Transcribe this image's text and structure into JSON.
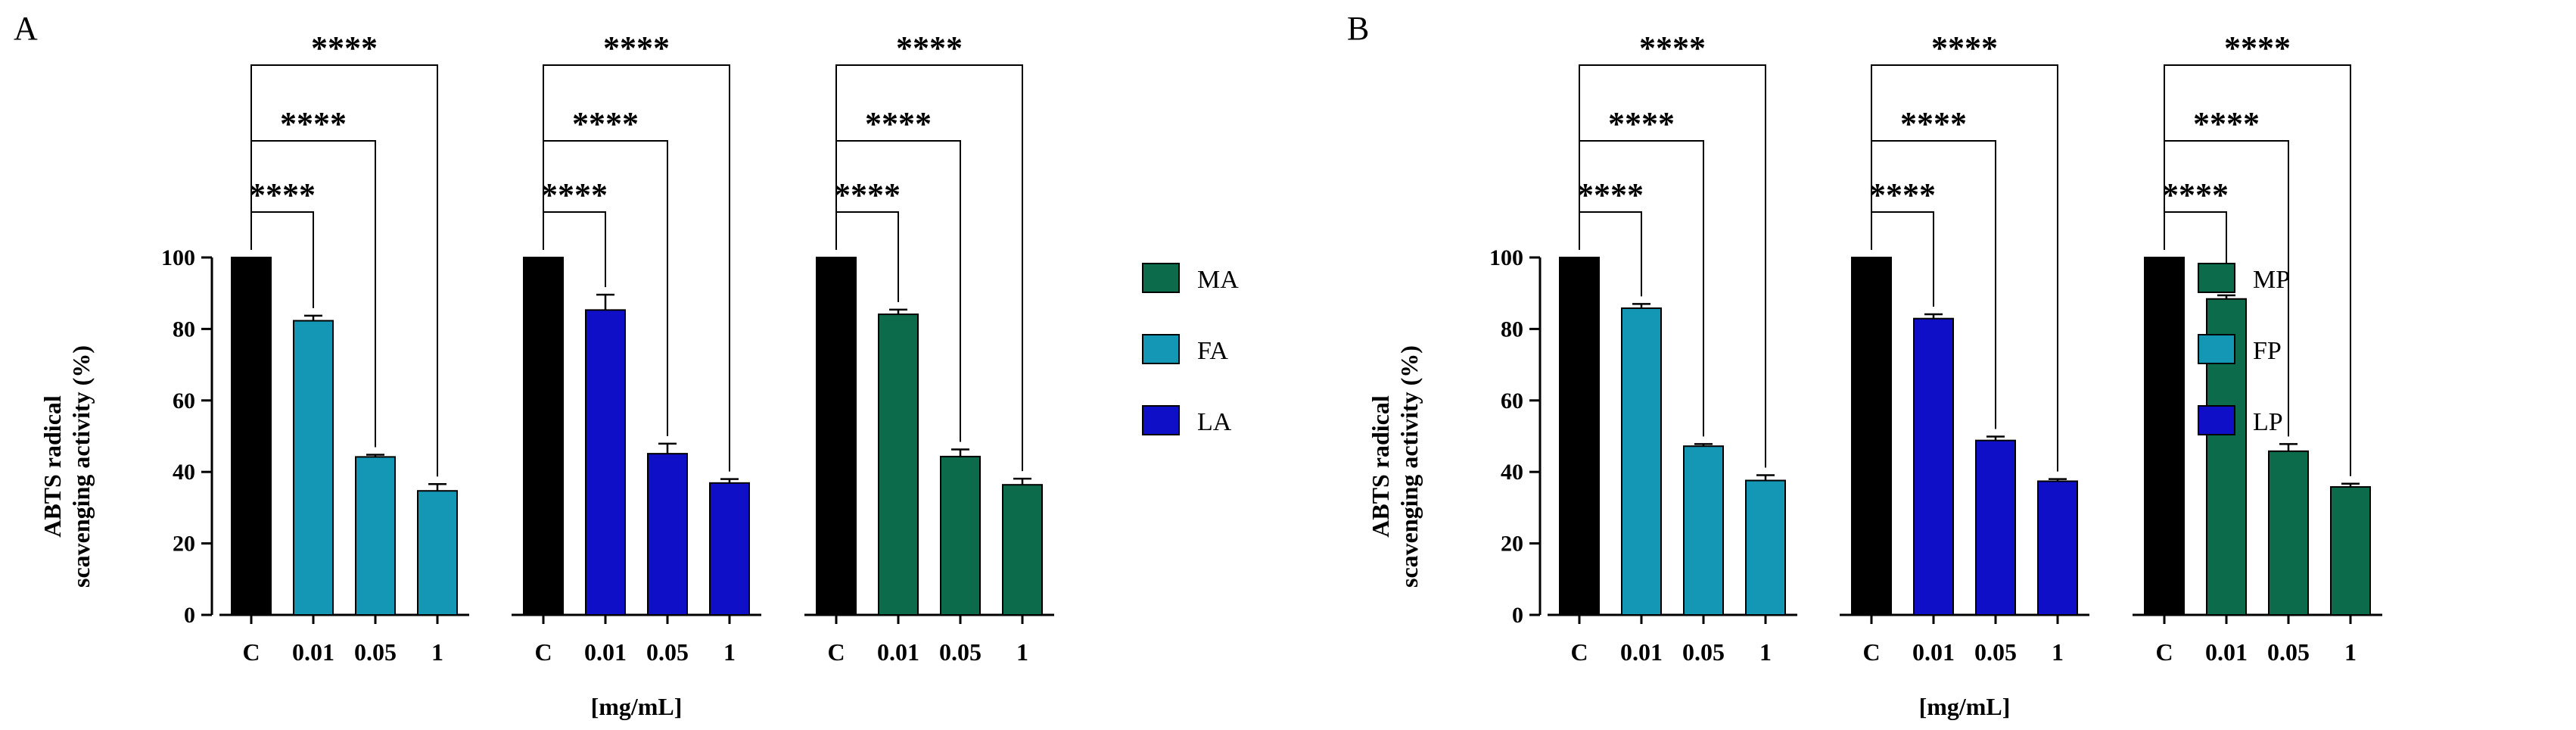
{
  "chart_data": [
    {
      "panel_label": "A",
      "type": "bar",
      "ylabel_lines": [
        "ABTS radical",
        "scavenging activity (%)"
      ],
      "xlabel": "[mg/mL]",
      "ylim": [
        0,
        100
      ],
      "yticks": [
        0,
        20,
        40,
        60,
        80,
        100
      ],
      "x_tick_labels": [
        "C",
        "0.01",
        "0.05",
        "1"
      ],
      "significance_label": "****",
      "legend": [
        {
          "label": "MA",
          "color": "#0b6b4a"
        },
        {
          "label": "FA",
          "color": "#1497b5"
        },
        {
          "label": "LA",
          "color": "#0f0fc8"
        }
      ],
      "groups": [
        {
          "series": "FA",
          "color": "#1497b5",
          "values": [
            100,
            82.3,
            44.2,
            34.7
          ],
          "errors": [
            0,
            1.4,
            0.6,
            1.9
          ]
        },
        {
          "series": "LA",
          "color": "#0f0fc8",
          "values": [
            100,
            85.3,
            45.1,
            36.9
          ],
          "errors": [
            0,
            4.3,
            2.8,
            1.1
          ]
        },
        {
          "series": "MA",
          "color": "#0b6b4a",
          "values": [
            100,
            84.1,
            44.3,
            36.4
          ],
          "errors": [
            0,
            1.3,
            2.0,
            1.7
          ]
        }
      ],
      "control_color": "#000000"
    },
    {
      "panel_label": "B",
      "type": "bar",
      "ylabel_lines": [
        "ABTS radical",
        "scavenging activity (%)"
      ],
      "xlabel": "[mg/mL]",
      "ylim": [
        0,
        100
      ],
      "yticks": [
        0,
        20,
        40,
        60,
        80,
        100
      ],
      "x_tick_labels": [
        "C",
        "0.01",
        "0.05",
        "1"
      ],
      "significance_label": "****",
      "legend": [
        {
          "label": "MP",
          "color": "#0b6b4a"
        },
        {
          "label": "FP",
          "color": "#1497b5"
        },
        {
          "label": "LP",
          "color": "#0f0fc8"
        }
      ],
      "groups": [
        {
          "series": "FP",
          "color": "#1497b5",
          "values": [
            100,
            85.8,
            47.2,
            37.6
          ],
          "errors": [
            0,
            1.2,
            0.6,
            1.5
          ]
        },
        {
          "series": "LP",
          "color": "#0f0fc8",
          "values": [
            100,
            82.9,
            48.8,
            37.4
          ],
          "errors": [
            0,
            1.2,
            1.1,
            0.6
          ]
        },
        {
          "series": "MP",
          "color": "#0b6b4a",
          "values": [
            100,
            88.4,
            45.8,
            35.8
          ],
          "errors": [
            0,
            1.0,
            2.0,
            0.9
          ]
        }
      ],
      "control_color": "#000000"
    }
  ]
}
